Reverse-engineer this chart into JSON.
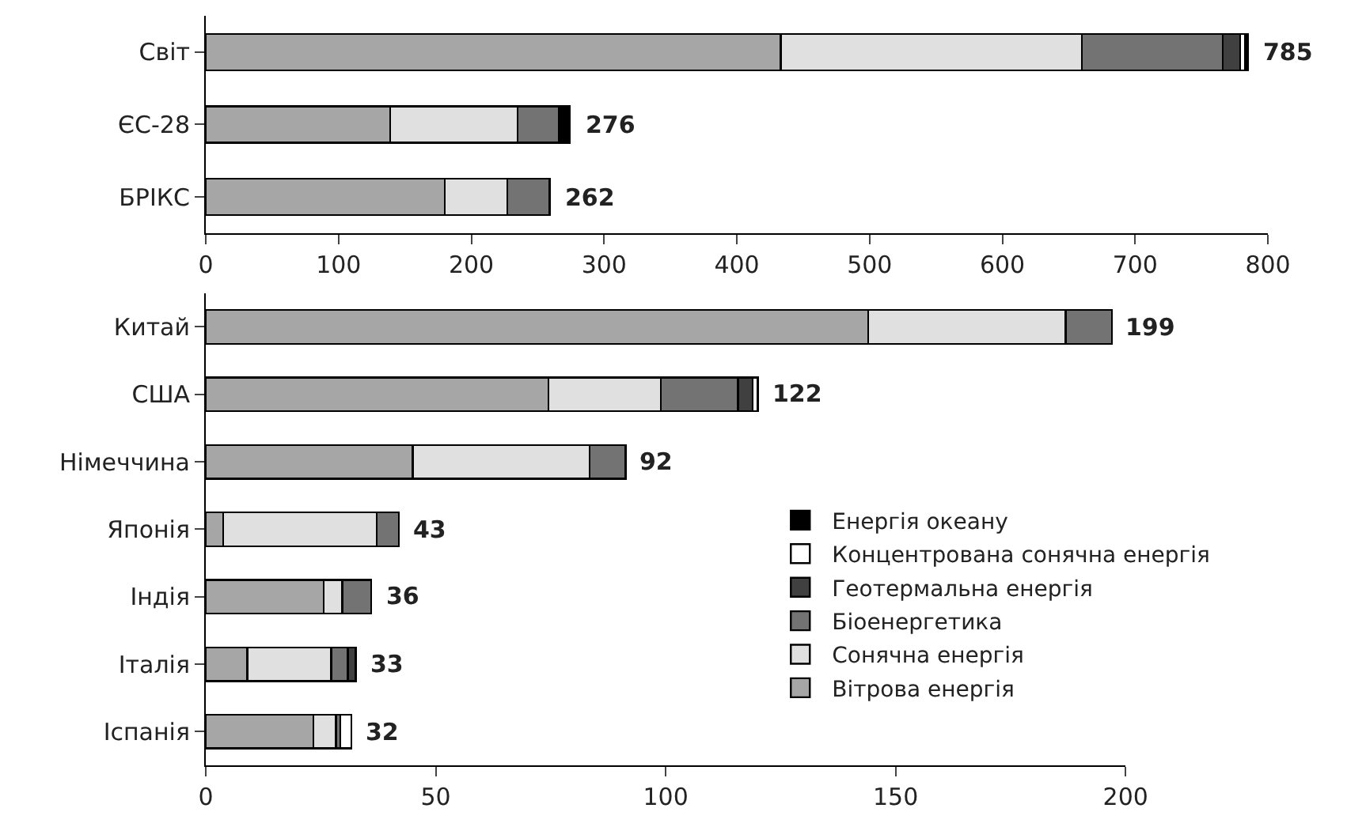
{
  "chart_data": [
    {
      "type": "bar",
      "orientation": "horizontal",
      "stacked": true,
      "categories": [
        "Світ",
        "ЄС-28",
        "БРІКС"
      ],
      "xlim": [
        0,
        800
      ],
      "xticks": [
        0,
        100,
        200,
        300,
        400,
        500,
        600,
        700,
        800
      ],
      "legend": false,
      "totals": [
        "785",
        "276",
        "262"
      ],
      "series": [
        {
          "color": "#a6a6a6",
          "values": [
            433,
            139,
            180
          ]
        },
        {
          "color": "#e0e0e0",
          "values": [
            227,
            96,
            47
          ]
        },
        {
          "color": "#737373",
          "values": [
            106,
            31,
            32
          ]
        },
        {
          "color": "#404040",
          "values": [
            13,
            null,
            null
          ]
        },
        {
          "color": "#ffffff",
          "values": [
            4,
            null,
            null
          ]
        },
        {
          "color": "#000000",
          "values": [
            2,
            8,
            null
          ]
        }
      ]
    },
    {
      "type": "bar",
      "orientation": "horizontal",
      "stacked": true,
      "categories": [
        "Китай",
        "США",
        "Німеччина",
        "Японія",
        "Індія",
        "Італія",
        "Іспанія"
      ],
      "xlim": [
        0,
        200
      ],
      "xticks": [
        0,
        50,
        100,
        150,
        200
      ],
      "legend": "right",
      "totals": [
        "199",
        "122",
        "92",
        "43",
        "36",
        "33",
        "32"
      ],
      "series": [
        {
          "name": "Вітрова енергія",
          "color": "#a6a6a6",
          "values": [
            144,
            74.5,
            45,
            3.8,
            25.6,
            9,
            23.4
          ]
        },
        {
          "name": "Сонячна енергія",
          "color": "#e0e0e0",
          "values": [
            43,
            24.5,
            38.5,
            33.4,
            4.1,
            18.3,
            4.9
          ]
        },
        {
          "name": "Біоенергетика",
          "color": "#737373",
          "values": [
            10,
            16.7,
            7.8,
            4.8,
            6.3,
            3.6,
            1
          ]
        },
        {
          "name": "Геотермальна енергія",
          "color": "#404040",
          "values": [
            null,
            3.2,
            null,
            null,
            null,
            1.7,
            null
          ]
        },
        {
          "name": "Концентрована сонячна енергія",
          "color": "#ffffff",
          "values": [
            null,
            1.1,
            null,
            null,
            null,
            null,
            2.4
          ]
        },
        {
          "name": "Енергія океану",
          "color": "#000000",
          "values": [
            null,
            null,
            null,
            null,
            null,
            null,
            null
          ]
        }
      ]
    }
  ]
}
